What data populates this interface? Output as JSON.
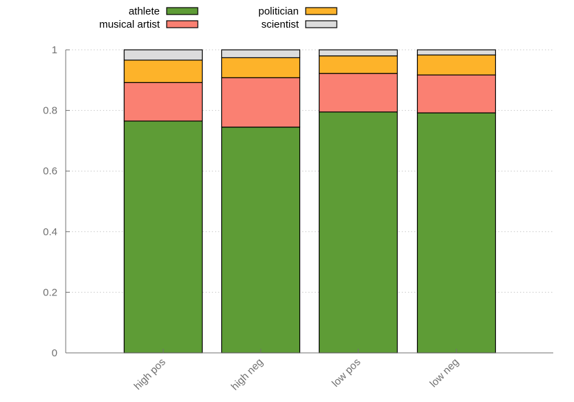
{
  "chart_data": {
    "type": "bar",
    "stacked": true,
    "categories": [
      "high pos",
      "high neg",
      "low pos",
      "low neg"
    ],
    "series": [
      {
        "name": "athlete",
        "color": "#5e9c36",
        "values": [
          0.765,
          0.745,
          0.795,
          0.792
        ]
      },
      {
        "name": "musical artist",
        "color": "#fa8072",
        "values": [
          0.127,
          0.163,
          0.127,
          0.125
        ]
      },
      {
        "name": "politician",
        "color": "#fdb32a",
        "values": [
          0.074,
          0.066,
          0.058,
          0.066
        ]
      },
      {
        "name": "scientist",
        "color": "#dcdcdc",
        "values": [
          0.034,
          0.026,
          0.02,
          0.017
        ]
      }
    ],
    "ylim": [
      0,
      1
    ],
    "yticks": [
      0,
      0.2,
      0.4,
      0.6,
      0.8,
      1
    ],
    "ytick_labels": [
      "0",
      "0.2",
      "0.4",
      "0.6",
      "0.8",
      "1"
    ],
    "grid": true,
    "legend_position": "top-left",
    "title": "",
    "xlabel": "",
    "ylabel": ""
  }
}
